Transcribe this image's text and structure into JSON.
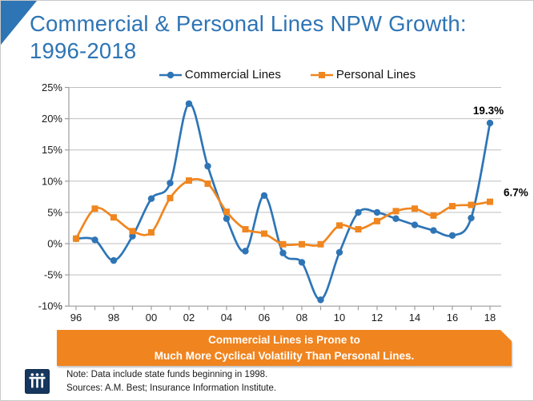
{
  "chart_data": {
    "type": "line",
    "title": "Commercial & Personal Lines NPW Growth: 1996-2018",
    "x": [
      1996,
      1997,
      1998,
      1999,
      2000,
      2001,
      2002,
      2003,
      2004,
      2005,
      2006,
      2007,
      2008,
      2009,
      2010,
      2011,
      2012,
      2013,
      2014,
      2015,
      2016,
      2017,
      2018
    ],
    "x_tick_labels": [
      "96",
      "98",
      "00",
      "02",
      "04",
      "06",
      "08",
      "10",
      "12",
      "14",
      "16",
      "18"
    ],
    "y_tick_labels": [
      "25%",
      "20%",
      "15%",
      "10%",
      "5%",
      "0%",
      "-5%",
      "-10%"
    ],
    "ylim": [
      -10,
      25
    ],
    "y_tick_step": 5,
    "grid": true,
    "legend_position": "top-center",
    "series": [
      {
        "name": "Commercial Lines",
        "color": "#2E75B6",
        "marker": "circle",
        "values": [
          0.8,
          0.6,
          -2.7,
          1.2,
          7.2,
          9.7,
          22.4,
          12.4,
          4.0,
          -1.2,
          7.7,
          -1.5,
          -3.0,
          -9.0,
          -1.4,
          5.0,
          5.0,
          4.0,
          3.0,
          2.1,
          1.3,
          4.1,
          19.3
        ],
        "end_label": "19.3%"
      },
      {
        "name": "Personal Lines",
        "color": "#F0861F",
        "marker": "square",
        "values": [
          0.8,
          5.6,
          4.2,
          2.0,
          1.8,
          7.3,
          10.1,
          9.6,
          5.1,
          2.3,
          1.6,
          -0.1,
          -0.1,
          -0.1,
          2.9,
          2.3,
          3.6,
          5.2,
          5.6,
          4.5,
          6.0,
          6.2,
          6.7
        ],
        "end_label": "6.7%"
      }
    ]
  },
  "banner": {
    "line1": "Commercial Lines is Prone to",
    "line2": "Much More Cyclical Volatility Than Personal Lines.",
    "bg_color": "#F0841F"
  },
  "footer": {
    "note": "Note: Data include state funds beginning in 1998.",
    "sources": "Sources: A.M. Best; Insurance Information Institute."
  },
  "logo": {
    "text": "iii"
  },
  "colors": {
    "title_blue": "#2E74B5",
    "triangle_blue": "#2E75B6",
    "commercial_blue": "#2E75B6",
    "personal_orange": "#F0861F",
    "banner_orange": "#F0841F",
    "gridline": "#BFBFBF",
    "axis": "#9C9C9C",
    "label_text": "#1A1A1A",
    "logo_navy": "#16365D"
  }
}
